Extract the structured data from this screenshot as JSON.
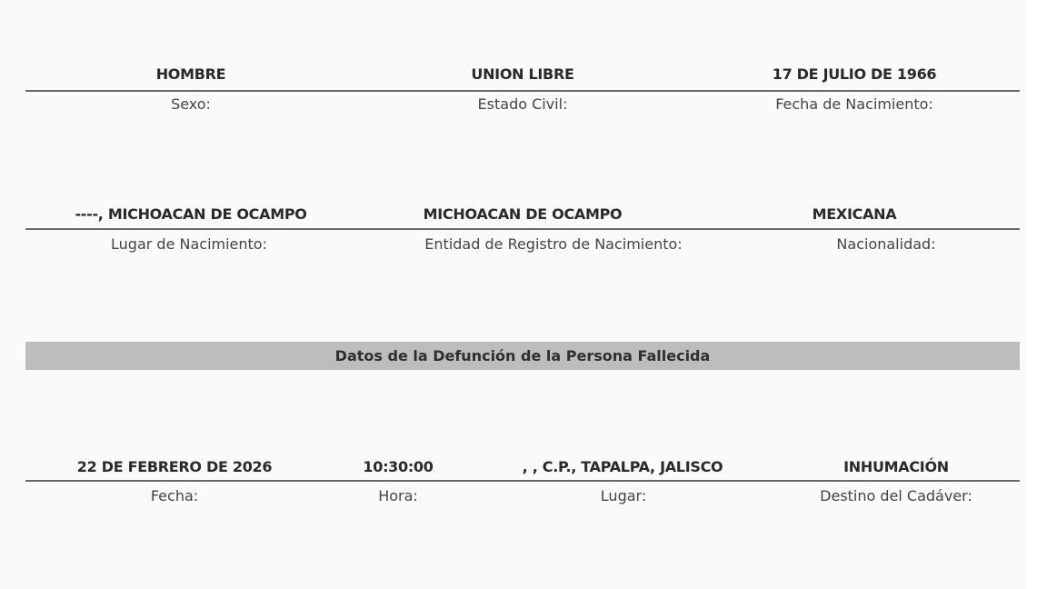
{
  "row1": [
    {
      "value": "HOMBRE",
      "label": "Sexo:"
    },
    {
      "value": "UNION LIBRE",
      "label": "Estado Civil:"
    },
    {
      "value": "17 DE JULIO DE 1966",
      "label": "Fecha de Nacimiento:"
    }
  ],
  "row2": [
    {
      "value": "----, MICHOACAN DE OCAMPO",
      "label": "Lugar de Nacimiento:"
    },
    {
      "value": "MICHOACAN DE OCAMPO",
      "label": "Entidad de Registro de Nacimiento:"
    },
    {
      "value": "MEXICANA",
      "label": "Nacionalidad:"
    }
  ],
  "section_title": "Datos de la Defunción de la Persona Fallecida",
  "row3": [
    {
      "value": "22 DE FEBRERO DE 2026",
      "label": "Fecha:"
    },
    {
      "value": "10:30:00",
      "label": "Hora:"
    },
    {
      "value": ", , C.P., TAPALPA, JALISCO",
      "label": "Lugar:"
    },
    {
      "value": "INHUMACIÓN",
      "label": "Destino del Cadáver:"
    }
  ],
  "colors": {
    "background": "#fafafa",
    "band": "#bdbdbd",
    "rule": "#6a6a6a"
  }
}
